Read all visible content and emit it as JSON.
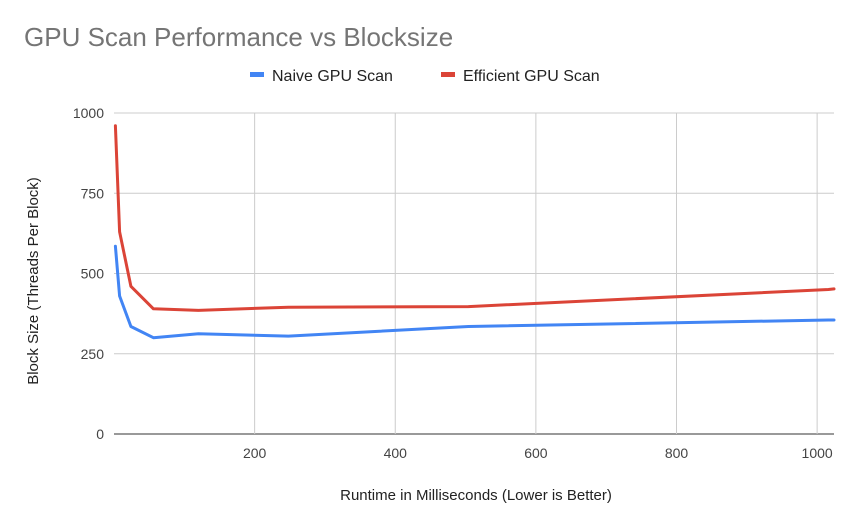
{
  "chart_data": {
    "type": "line",
    "title": "GPU Scan Performance vs Blocksize",
    "xlabel": "Runtime in Milliseconds (Lower is Better)",
    "ylabel": "Block Size (Threads Per Block)",
    "xlim": [
      0,
      1024
    ],
    "ylim": [
      0,
      1000
    ],
    "x_ticks": [
      200,
      400,
      600,
      800,
      1000
    ],
    "y_ticks": [
      0,
      250,
      500,
      750,
      1000
    ],
    "grid": true,
    "legend_position": "top",
    "x": [
      2,
      8,
      24,
      56,
      120,
      248,
      504,
      1016,
      1024
    ],
    "series": [
      {
        "name": "Naive GPU Scan",
        "color": "#4285f4",
        "values": [
          585,
          430,
          335,
          300,
          312,
          305,
          335,
          355,
          355
        ]
      },
      {
        "name": "Efficient GPU Scan",
        "color": "#db4437",
        "values": [
          960,
          630,
          460,
          390,
          385,
          395,
          397,
          450,
          452
        ]
      }
    ]
  }
}
